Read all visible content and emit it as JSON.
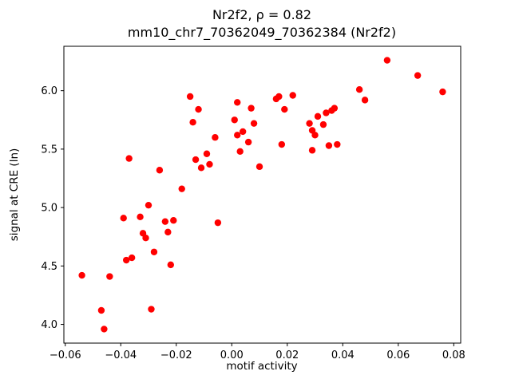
{
  "figure": {
    "title_line1": "Nr2f2, ρ = 0.82",
    "title_line2": "mm10_chr7_70362049_70362384 (Nr2f2)",
    "xlabel": "motif activity",
    "ylabel": "signal at CRE (ln)"
  },
  "chart_data": {
    "type": "scatter",
    "title": "Nr2f2, ρ = 0.82",
    "subtitle": "mm10_chr7_70362049_70362384 (Nr2f2)",
    "xlabel": "motif activity",
    "ylabel": "signal at CRE (ln)",
    "legend": null,
    "grid": false,
    "marker_color": "#ff0000",
    "xlim": [
      -0.0605,
      0.0825
    ],
    "ylim": [
      3.84,
      6.38
    ],
    "xticks": [
      -0.06,
      -0.04,
      -0.02,
      0.0,
      0.02,
      0.04,
      0.06,
      0.08
    ],
    "yticks": [
      4.0,
      4.5,
      5.0,
      5.5,
      6.0
    ],
    "points": [
      [
        -0.054,
        4.42
      ],
      [
        -0.047,
        4.12
      ],
      [
        -0.046,
        3.96
      ],
      [
        -0.044,
        4.41
      ],
      [
        -0.039,
        4.91
      ],
      [
        -0.038,
        4.55
      ],
      [
        -0.037,
        5.42
      ],
      [
        -0.036,
        4.57
      ],
      [
        -0.033,
        4.92
      ],
      [
        -0.032,
        4.78
      ],
      [
        -0.031,
        4.74
      ],
      [
        -0.03,
        5.02
      ],
      [
        -0.029,
        4.13
      ],
      [
        -0.028,
        4.62
      ],
      [
        -0.026,
        5.32
      ],
      [
        -0.024,
        4.88
      ],
      [
        -0.023,
        4.79
      ],
      [
        -0.022,
        4.51
      ],
      [
        -0.021,
        4.89
      ],
      [
        -0.018,
        5.16
      ],
      [
        -0.015,
        5.95
      ],
      [
        -0.014,
        5.73
      ],
      [
        -0.013,
        5.41
      ],
      [
        -0.012,
        5.84
      ],
      [
        -0.011,
        5.34
      ],
      [
        -0.009,
        5.46
      ],
      [
        -0.008,
        5.37
      ],
      [
        -0.006,
        5.6
      ],
      [
        -0.005,
        4.87
      ],
      [
        0.001,
        5.75
      ],
      [
        0.002,
        5.9
      ],
      [
        0.002,
        5.62
      ],
      [
        0.003,
        5.48
      ],
      [
        0.004,
        5.65
      ],
      [
        0.006,
        5.56
      ],
      [
        0.007,
        5.85
      ],
      [
        0.008,
        5.72
      ],
      [
        0.01,
        5.35
      ],
      [
        0.016,
        5.93
      ],
      [
        0.017,
        5.95
      ],
      [
        0.018,
        5.54
      ],
      [
        0.019,
        5.84
      ],
      [
        0.022,
        5.96
      ],
      [
        0.028,
        5.72
      ],
      [
        0.029,
        5.66
      ],
      [
        0.029,
        5.49
      ],
      [
        0.03,
        5.62
      ],
      [
        0.031,
        5.78
      ],
      [
        0.033,
        5.71
      ],
      [
        0.034,
        5.81
      ],
      [
        0.035,
        5.53
      ],
      [
        0.036,
        5.83
      ],
      [
        0.037,
        5.85
      ],
      [
        0.038,
        5.54
      ],
      [
        0.046,
        6.01
      ],
      [
        0.048,
        5.92
      ],
      [
        0.056,
        6.26
      ],
      [
        0.067,
        6.13
      ],
      [
        0.076,
        5.99
      ]
    ]
  }
}
